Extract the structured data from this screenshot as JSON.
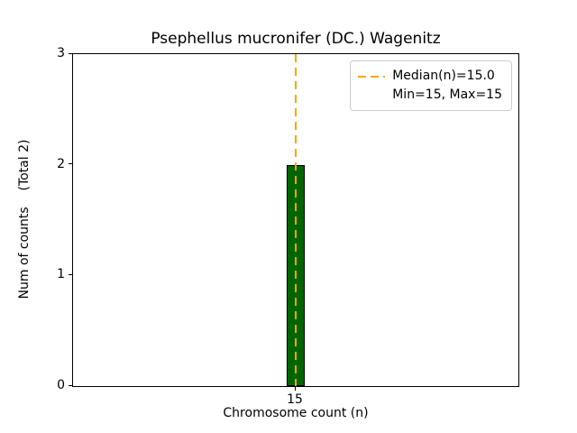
{
  "chart_data": {
    "type": "bar",
    "title": "Psephellus mucronifer (DC.) Wagenitz",
    "xlabel": "Chromosome count (n)",
    "ylabel": "Num of counts    (Total 2)",
    "categories": [
      "15"
    ],
    "values": [
      2
    ],
    "ylim": [
      0,
      3
    ],
    "yticks": [
      0,
      1,
      2,
      3
    ],
    "grid": false,
    "bar_color": "#006400",
    "bar_edge_color": "#000000",
    "median_line": {
      "value": 15.0,
      "color": "#FFA500",
      "style": "dashed"
    },
    "legend": {
      "position": "top-right",
      "entries": [
        {
          "marker": "dashed-line",
          "color": "#FFA500",
          "label": "Median(n)=15.0"
        },
        {
          "marker": "none",
          "color": "",
          "label": "Min=15, Max=15"
        }
      ]
    }
  }
}
